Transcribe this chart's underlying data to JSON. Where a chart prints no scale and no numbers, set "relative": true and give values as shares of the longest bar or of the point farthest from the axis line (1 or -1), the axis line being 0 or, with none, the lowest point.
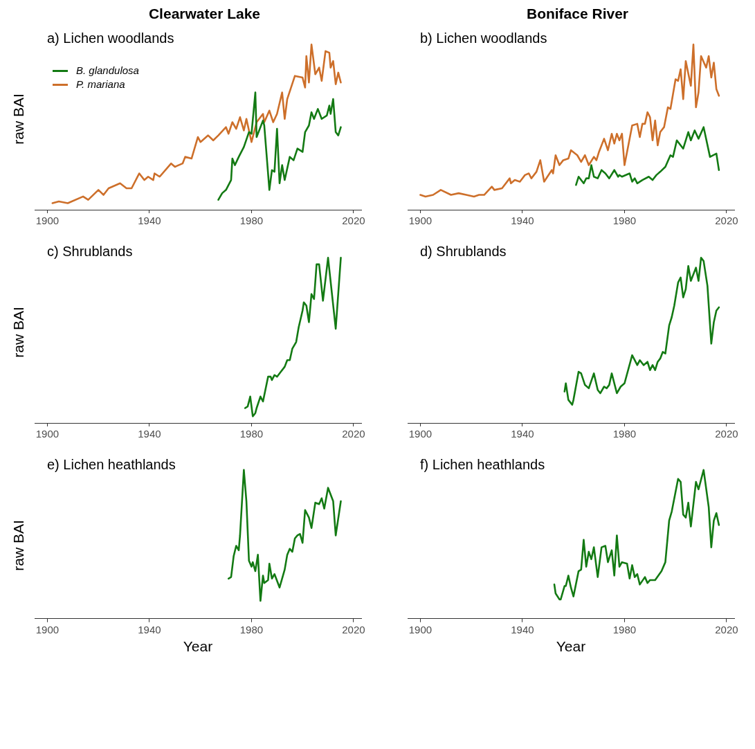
{
  "chart_data": [
    {
      "type": "line",
      "title": "Clearwater Lake",
      "subtitle": "a) Lichen woodlands",
      "ylabel": "raw BAI",
      "relative": true,
      "xlim": [
        1895,
        2023
      ],
      "xticks": [
        1900,
        1940,
        1980,
        2020
      ],
      "legend": "top left",
      "series": [
        {
          "name": "B. glandulosa",
          "color": "#137a13",
          "x": [
            1967,
            1968.5,
            1970,
            1972,
            1972.5,
            1973.5,
            1975,
            1977,
            1979,
            1980,
            1981.5,
            1982,
            1984.5,
            1985,
            1987,
            1988,
            1989,
            1990,
            1991,
            1992,
            1993,
            1995,
            1996.5,
            1998,
            2000,
            2001,
            2002.5,
            2003.5,
            2004.5,
            2006,
            2007.5,
            2009.5,
            2010.5,
            2011,
            2012,
            2013,
            2014,
            2015
          ],
          "values": [
            0.06,
            0.1,
            0.12,
            0.18,
            0.31,
            0.27,
            0.32,
            0.38,
            0.47,
            0.46,
            0.71,
            0.44,
            0.54,
            0.51,
            0.12,
            0.24,
            0.23,
            0.49,
            0.16,
            0.27,
            0.18,
            0.32,
            0.3,
            0.37,
            0.35,
            0.47,
            0.51,
            0.59,
            0.55,
            0.61,
            0.55,
            0.57,
            0.63,
            0.58,
            0.67,
            0.47,
            0.45,
            0.5
          ]
        },
        {
          "name": "P. mariana",
          "color": "#cd6f2a",
          "x": [
            1902,
            1904.5,
            1908,
            1914,
            1916,
            1920,
            1922,
            1924,
            1928.5,
            1931,
            1933,
            1936,
            1938,
            1939.5,
            1941.5,
            1942,
            1944,
            1948.5,
            1950,
            1953,
            1954,
            1956.5,
            1959,
            1960,
            1963,
            1965,
            1967,
            1970,
            1971,
            1972.5,
            1974,
            1975.5,
            1977,
            1978,
            1980,
            1982,
            1984.5,
            1985,
            1987,
            1988.5,
            1990,
            1992,
            1993,
            1994,
            1997,
            2000,
            2001,
            2001.5,
            2002.5,
            2003.5,
            2005,
            2006.5,
            2007.5,
            2009,
            2010.5,
            2011,
            2012,
            2013,
            2014,
            2015
          ],
          "values": [
            0.04,
            0.05,
            0.04,
            0.08,
            0.06,
            0.12,
            0.09,
            0.13,
            0.16,
            0.13,
            0.13,
            0.22,
            0.18,
            0.2,
            0.18,
            0.22,
            0.2,
            0.28,
            0.26,
            0.28,
            0.32,
            0.31,
            0.44,
            0.41,
            0.45,
            0.42,
            0.45,
            0.5,
            0.46,
            0.53,
            0.49,
            0.56,
            0.48,
            0.55,
            0.41,
            0.53,
            0.58,
            0.53,
            0.6,
            0.53,
            0.58,
            0.71,
            0.55,
            0.67,
            0.81,
            0.8,
            0.74,
            0.93,
            0.77,
            1.0,
            0.82,
            0.86,
            0.78,
            0.96,
            0.95,
            0.86,
            0.9,
            0.76,
            0.83,
            0.77
          ]
        }
      ]
    },
    {
      "type": "line",
      "title": "Boniface River",
      "subtitle": "b) Lichen woodlands",
      "relative": true,
      "xlim": [
        1895,
        2023
      ],
      "xticks": [
        1900,
        1940,
        1980,
        2020
      ],
      "series": [
        {
          "color": "#137a13",
          "x": [
            1961,
            1962,
            1964,
            1965,
            1966,
            1967,
            1968,
            1969.5,
            1971,
            1972.5,
            1974,
            1976,
            1977.5,
            1978,
            1979,
            1982,
            1983,
            1984,
            1985,
            1987,
            1989.5,
            1991,
            1992.5,
            1994,
            1996,
            1998,
            1999,
            2000.5,
            2003,
            2005,
            2006,
            2007.5,
            2009,
            2011,
            2013.5,
            2016,
            2017
          ],
          "values": [
            0.15,
            0.2,
            0.16,
            0.19,
            0.19,
            0.27,
            0.2,
            0.19,
            0.24,
            0.22,
            0.19,
            0.24,
            0.2,
            0.21,
            0.2,
            0.22,
            0.17,
            0.19,
            0.16,
            0.18,
            0.2,
            0.18,
            0.21,
            0.23,
            0.26,
            0.33,
            0.32,
            0.42,
            0.37,
            0.47,
            0.42,
            0.48,
            0.43,
            0.5,
            0.32,
            0.34,
            0.24
          ]
        },
        {
          "color": "#cd6f2a",
          "x": [
            1900,
            1902,
            1905,
            1908,
            1912,
            1915,
            1918,
            1921,
            1923,
            1925,
            1928,
            1929,
            1932,
            1935,
            1935.5,
            1937,
            1939,
            1941,
            1942.5,
            1943.5,
            1945.5,
            1947,
            1948.5,
            1951.5,
            1952,
            1953,
            1954.5,
            1956,
            1958,
            1959,
            1961.5,
            1963,
            1964.5,
            1966,
            1968,
            1969,
            1970,
            1972,
            1973.5,
            1975,
            1976,
            1977,
            1978,
            1979,
            1980,
            1981.5,
            1983,
            1985,
            1986,
            1987,
            1988,
            1989,
            1990,
            1991,
            1992,
            1993,
            1994,
            1995.5,
            1997,
            1998,
            2000,
            2001,
            2002,
            2003,
            2004,
            2006,
            2007,
            2008,
            2009,
            2010,
            2012,
            2013,
            2014,
            2015,
            2016,
            2017
          ],
          "values": [
            0.09,
            0.08,
            0.09,
            0.12,
            0.09,
            0.1,
            0.09,
            0.08,
            0.09,
            0.09,
            0.14,
            0.12,
            0.13,
            0.19,
            0.16,
            0.18,
            0.17,
            0.21,
            0.22,
            0.19,
            0.23,
            0.3,
            0.17,
            0.24,
            0.22,
            0.33,
            0.27,
            0.3,
            0.31,
            0.36,
            0.33,
            0.29,
            0.33,
            0.27,
            0.32,
            0.3,
            0.35,
            0.43,
            0.36,
            0.46,
            0.4,
            0.46,
            0.42,
            0.46,
            0.27,
            0.39,
            0.51,
            0.52,
            0.44,
            0.52,
            0.52,
            0.59,
            0.56,
            0.42,
            0.54,
            0.39,
            0.47,
            0.5,
            0.62,
            0.61,
            0.79,
            0.78,
            0.85,
            0.67,
            0.9,
            0.75,
            1.0,
            0.62,
            0.71,
            0.93,
            0.86,
            0.93,
            0.8,
            0.89,
            0.73,
            0.69
          ]
        }
      ]
    },
    {
      "type": "line",
      "subtitle": "c) Shrublands",
      "ylabel": "raw BAI",
      "relative": true,
      "xlim": [
        1895,
        2023
      ],
      "xticks": [
        1900,
        1940,
        1980,
        2020
      ],
      "series": [
        {
          "color": "#137a13",
          "x": [
            1977.5,
            1978.5,
            1979.5,
            1980.5,
            1981.5,
            1982,
            1983.5,
            1984.5,
            1986.5,
            1987.5,
            1988,
            1989,
            1990,
            1991.5,
            1993,
            1994,
            1995,
            1996,
            1997.5,
            1998.5,
            2000,
            2000.5,
            2001.5,
            2002.5,
            2003.5,
            2004.5,
            2005.5,
            2006.5,
            2008,
            2010,
            2013,
            2015
          ],
          "values": [
            0.09,
            0.1,
            0.16,
            0.04,
            0.06,
            0.09,
            0.16,
            0.13,
            0.28,
            0.28,
            0.26,
            0.29,
            0.28,
            0.31,
            0.34,
            0.38,
            0.38,
            0.45,
            0.49,
            0.58,
            0.68,
            0.73,
            0.71,
            0.61,
            0.78,
            0.75,
            0.96,
            0.96,
            0.74,
            1.0,
            0.57,
            1.0
          ]
        }
      ]
    },
    {
      "type": "line",
      "subtitle": "d) Shrublands",
      "relative": true,
      "xlim": [
        1895,
        2023
      ],
      "xticks": [
        1900,
        1940,
        1980,
        2020
      ],
      "series": [
        {
          "color": "#137a13",
          "x": [
            1956.5,
            1957,
            1958,
            1959.5,
            1960,
            1962,
            1963,
            1964.5,
            1966,
            1968,
            1969.5,
            1970.5,
            1972,
            1973,
            1974,
            1975,
            1977,
            1978.5,
            1980,
            1983,
            1985,
            1986,
            1987.5,
            1989,
            1990,
            1991,
            1992,
            1993,
            1994,
            1995,
            1996,
            1997.5,
            1998.5,
            1999.5,
            2001,
            2002,
            2003,
            2004,
            2005,
            2006,
            2008,
            2009,
            2010,
            2011,
            2012.5,
            2014,
            2015,
            2016,
            2017
          ],
          "values": [
            0.19,
            0.24,
            0.14,
            0.11,
            0.14,
            0.31,
            0.3,
            0.23,
            0.21,
            0.3,
            0.2,
            0.18,
            0.22,
            0.21,
            0.23,
            0.3,
            0.18,
            0.22,
            0.24,
            0.41,
            0.35,
            0.38,
            0.35,
            0.37,
            0.32,
            0.35,
            0.32,
            0.37,
            0.39,
            0.43,
            0.42,
            0.59,
            0.64,
            0.71,
            0.85,
            0.88,
            0.76,
            0.81,
            0.95,
            0.86,
            0.94,
            0.86,
            1.0,
            0.98,
            0.83,
            0.48,
            0.61,
            0.68,
            0.7
          ]
        }
      ]
    },
    {
      "type": "line",
      "subtitle": "e) Lichen heathlands",
      "ylabel": "raw BAI",
      "xlabel": "Year",
      "relative": true,
      "xlim": [
        1895,
        2023
      ],
      "xticks": [
        1900,
        1940,
        1980,
        2020
      ],
      "series": [
        {
          "color": "#137a13",
          "x": [
            1971,
            1972,
            1973,
            1974,
            1975,
            1975.5,
            1977,
            1978,
            1979,
            1980,
            1980.5,
            1981.5,
            1982.5,
            1983.5,
            1984.5,
            1985,
            1986.5,
            1987,
            1988,
            1989,
            1991,
            1993,
            1994,
            1995,
            1996,
            1997,
            1998,
            1999,
            2000,
            2001,
            2002.5,
            2003.5,
            2005,
            2006.5,
            2007.5,
            2008.5,
            2010,
            2012,
            2013,
            2015
          ],
          "values": [
            0.27,
            0.28,
            0.42,
            0.49,
            0.46,
            0.56,
            1.0,
            0.79,
            0.39,
            0.35,
            0.38,
            0.32,
            0.43,
            0.12,
            0.29,
            0.24,
            0.26,
            0.37,
            0.27,
            0.3,
            0.21,
            0.33,
            0.43,
            0.47,
            0.45,
            0.54,
            0.56,
            0.57,
            0.51,
            0.73,
            0.68,
            0.61,
            0.78,
            0.77,
            0.81,
            0.74,
            0.88,
            0.79,
            0.56,
            0.79
          ]
        }
      ]
    },
    {
      "type": "line",
      "subtitle": "f) Lichen heathlands",
      "xlabel": "Year",
      "relative": true,
      "xlim": [
        1895,
        2023
      ],
      "xticks": [
        1900,
        1940,
        1980,
        2020
      ],
      "series": [
        {
          "color": "#137a13",
          "x": [
            1952.5,
            1953,
            1954.5,
            1955,
            1956.5,
            1957,
            1958,
            1959,
            1960,
            1962,
            1963,
            1964,
            1965,
            1966,
            1967,
            1968,
            1969.5,
            1971,
            1972.5,
            1973.5,
            1975,
            1976,
            1977,
            1978,
            1979,
            1981,
            1982,
            1983,
            1984,
            1985,
            1986,
            1988,
            1989,
            1990,
            1992,
            1994.5,
            1996,
            1997.5,
            1998.5,
            2001,
            2002,
            2003,
            2004,
            2005,
            2006,
            2008,
            2009,
            2011,
            2013,
            2014,
            2015,
            2016,
            2017
          ],
          "values": [
            0.23,
            0.17,
            0.13,
            0.13,
            0.22,
            0.22,
            0.29,
            0.21,
            0.15,
            0.32,
            0.33,
            0.53,
            0.35,
            0.45,
            0.4,
            0.48,
            0.28,
            0.48,
            0.49,
            0.38,
            0.46,
            0.29,
            0.56,
            0.35,
            0.38,
            0.37,
            0.27,
            0.36,
            0.28,
            0.3,
            0.23,
            0.28,
            0.24,
            0.26,
            0.26,
            0.32,
            0.38,
            0.66,
            0.72,
            0.94,
            0.92,
            0.7,
            0.68,
            0.78,
            0.62,
            0.92,
            0.87,
            1.0,
            0.75,
            0.48,
            0.66,
            0.71,
            0.63
          ]
        }
      ]
    }
  ]
}
